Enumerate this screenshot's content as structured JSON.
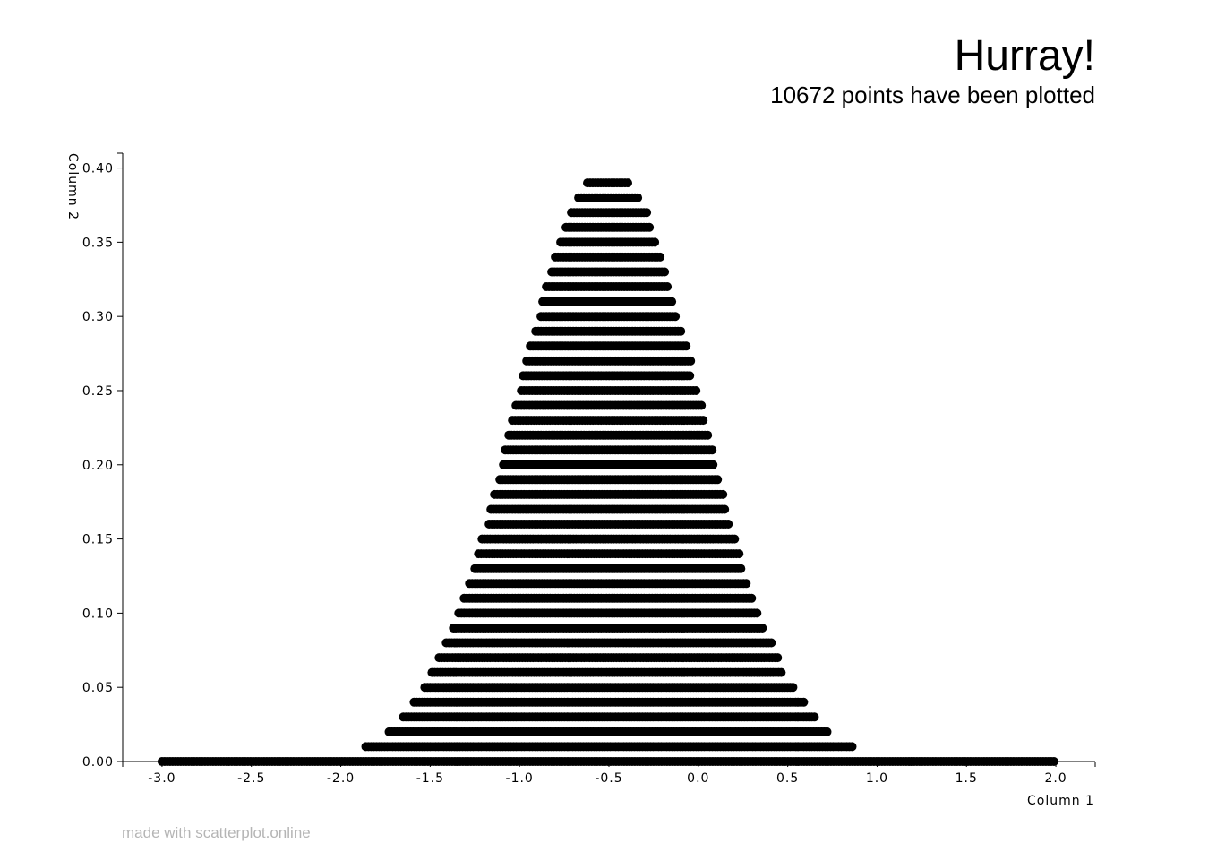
{
  "header": {
    "title": "Hurray!",
    "subtitle": "10672 points have been plotted"
  },
  "footer": {
    "text": "made with scatterplot.online"
  },
  "chart_data": {
    "type": "scatter",
    "xlabel": "Column 1",
    "ylabel": "Column 2",
    "xlim": [
      -3.22,
      2.22
    ],
    "ylim": [
      0.0,
      0.41
    ],
    "xticks": [
      "-3.0",
      "-2.5",
      "-2.0",
      "-1.5",
      "-1.0",
      "-0.5",
      "0.0",
      "0.5",
      "1.0",
      "1.5",
      "2.0"
    ],
    "yticks": [
      "0.00",
      "0.05",
      "0.10",
      "0.15",
      "0.20",
      "0.25",
      "0.30",
      "0.35",
      "0.40"
    ],
    "point_color": "#000000",
    "grid": false,
    "point_count": 10672,
    "series": [
      {
        "rows": [
          {
            "y": 0.0,
            "x_min": -3.0,
            "x_max": 2.0
          },
          {
            "y": 0.01,
            "x_min": -1.86,
            "x_max": 0.86
          },
          {
            "y": 0.02,
            "x_min": -1.73,
            "x_max": 0.73
          },
          {
            "y": 0.03,
            "x_min": -1.65,
            "x_max": 0.65
          },
          {
            "y": 0.04,
            "x_min": -1.59,
            "x_max": 0.59
          },
          {
            "y": 0.05,
            "x_min": -1.53,
            "x_max": 0.53
          },
          {
            "y": 0.06,
            "x_min": -1.49,
            "x_max": 0.47
          },
          {
            "y": 0.07,
            "x_min": -1.45,
            "x_max": 0.45
          },
          {
            "y": 0.08,
            "x_min": -1.41,
            "x_max": 0.41
          },
          {
            "y": 0.09,
            "x_min": -1.37,
            "x_max": 0.37
          },
          {
            "y": 0.1,
            "x_min": -1.34,
            "x_max": 0.34
          },
          {
            "y": 0.11,
            "x_min": -1.31,
            "x_max": 0.31
          },
          {
            "y": 0.12,
            "x_min": -1.28,
            "x_max": 0.28
          },
          {
            "y": 0.13,
            "x_min": -1.25,
            "x_max": 0.25
          },
          {
            "y": 0.14,
            "x_min": -1.23,
            "x_max": 0.23
          },
          {
            "y": 0.15,
            "x_min": -1.21,
            "x_max": 0.21
          },
          {
            "y": 0.16,
            "x_min": -1.17,
            "x_max": 0.17
          },
          {
            "y": 0.17,
            "x_min": -1.16,
            "x_max": 0.16
          },
          {
            "y": 0.18,
            "x_min": -1.14,
            "x_max": 0.14
          },
          {
            "y": 0.19,
            "x_min": -1.11,
            "x_max": 0.11
          },
          {
            "y": 0.2,
            "x_min": -1.09,
            "x_max": 0.09
          },
          {
            "y": 0.21,
            "x_min": -1.08,
            "x_max": 0.08
          },
          {
            "y": 0.22,
            "x_min": -1.06,
            "x_max": 0.06
          },
          {
            "y": 0.23,
            "x_min": -1.04,
            "x_max": 0.04
          },
          {
            "y": 0.24,
            "x_min": -1.02,
            "x_max": 0.02
          },
          {
            "y": 0.25,
            "x_min": -0.99,
            "x_max": 0.0
          },
          {
            "y": 0.26,
            "x_min": -0.98,
            "x_max": -0.04
          },
          {
            "y": 0.27,
            "x_min": -0.96,
            "x_max": -0.04
          },
          {
            "y": 0.28,
            "x_min": -0.94,
            "x_max": -0.06
          },
          {
            "y": 0.29,
            "x_min": -0.91,
            "x_max": -0.09
          },
          {
            "y": 0.3,
            "x_min": -0.88,
            "x_max": -0.12
          },
          {
            "y": 0.31,
            "x_min": -0.87,
            "x_max": -0.14
          },
          {
            "y": 0.32,
            "x_min": -0.85,
            "x_max": -0.17
          },
          {
            "y": 0.33,
            "x_min": -0.82,
            "x_max": -0.18
          },
          {
            "y": 0.34,
            "x_min": -0.8,
            "x_max": -0.21
          },
          {
            "y": 0.35,
            "x_min": -0.77,
            "x_max": -0.23
          },
          {
            "y": 0.36,
            "x_min": -0.74,
            "x_max": -0.26
          },
          {
            "y": 0.37,
            "x_min": -0.71,
            "x_max": -0.28
          },
          {
            "y": 0.38,
            "x_min": -0.67,
            "x_max": -0.33
          },
          {
            "y": 0.39,
            "x_min": -0.62,
            "x_max": -0.38
          }
        ]
      }
    ]
  }
}
